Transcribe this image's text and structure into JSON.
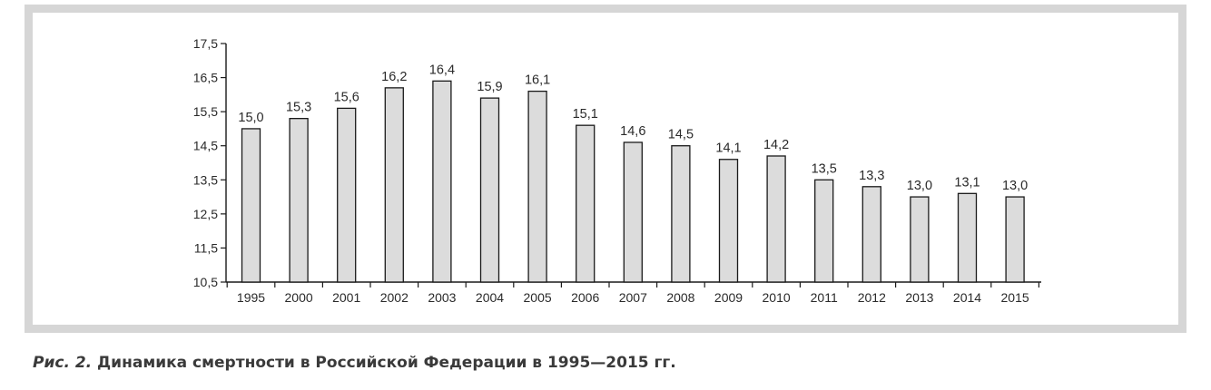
{
  "chart_data": {
    "type": "bar",
    "title": "",
    "xlabel": "",
    "ylabel": "",
    "categories": [
      "1995",
      "2000",
      "2001",
      "2002",
      "2003",
      "2004",
      "2005",
      "2006",
      "2007",
      "2008",
      "2009",
      "2010",
      "2011",
      "2012",
      "2013",
      "2014",
      "2015"
    ],
    "values": [
      15.0,
      15.3,
      15.6,
      16.2,
      16.4,
      15.9,
      16.1,
      15.1,
      14.6,
      14.5,
      14.1,
      14.2,
      13.5,
      13.3,
      13.0,
      13.1,
      13.0
    ],
    "value_labels": [
      "15,0",
      "15,3",
      "15,6",
      "16,2",
      "16,4",
      "15,9",
      "16,1",
      "15,1",
      "14,6",
      "14,5",
      "14,1",
      "14,2",
      "13,5",
      "13,3",
      "13,0",
      "13,1",
      "13,0"
    ],
    "ylim": [
      10.5,
      17.5
    ],
    "yticks": [
      10.5,
      11.5,
      12.5,
      13.5,
      14.5,
      15.5,
      16.5,
      17.5
    ],
    "ytick_labels": [
      "10,5",
      "11,5",
      "12,5",
      "13,5",
      "14,5",
      "15,5",
      "16,5",
      "17,5"
    ],
    "grid": false,
    "legend": "none",
    "colors": {
      "bar_fill": "#dcdcdc",
      "bar_stroke": "#1a1a1a",
      "axis": "#1a1a1a",
      "frame": "#d6d6d6"
    }
  },
  "caption": {
    "lead": "Рис. 2.",
    "text": " Динамика смертности в Российской Федерации в 1995—2015 гг."
  }
}
